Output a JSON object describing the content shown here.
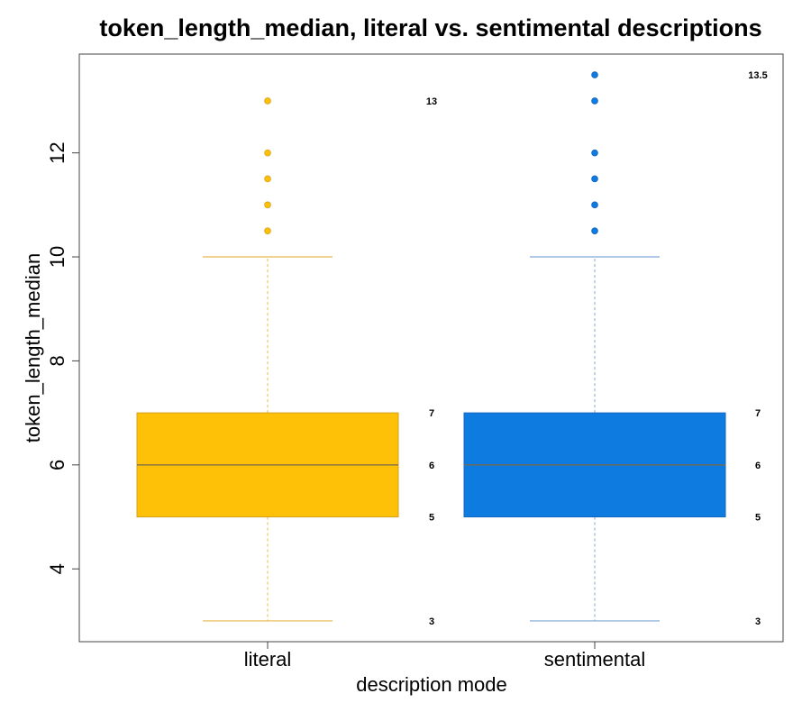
{
  "chart_data": {
    "type": "boxplot",
    "title": "token_length_median, literal vs. sentimental descriptions",
    "xlabel": "description mode",
    "ylabel": "token_length_median",
    "ylim": [
      2.6,
      13.9
    ],
    "yticks": [
      4,
      6,
      8,
      10,
      12
    ],
    "grid": false,
    "categories": [
      "literal",
      "sentimental"
    ],
    "series": [
      {
        "category": "literal",
        "color": "#FFC107",
        "edge_color": "#D4A017",
        "whisker_color": "#E8B84A",
        "whisker_low": 3,
        "q1": 5,
        "median": 6,
        "q3": 7,
        "whisker_high": 10,
        "outliers": [
          10.5,
          11,
          11.5,
          12,
          13
        ],
        "annotations": [
          {
            "value": 13,
            "text": "13"
          },
          {
            "value": 7,
            "text": "7"
          },
          {
            "value": 6,
            "text": "6"
          },
          {
            "value": 5,
            "text": "5"
          },
          {
            "value": 3,
            "text": "3"
          }
        ]
      },
      {
        "category": "sentimental",
        "color": "#0E7BE0",
        "edge_color": "#1565C0",
        "whisker_color": "#7FA6D6",
        "whisker_low": 3,
        "q1": 5,
        "median": 6,
        "q3": 7,
        "whisker_high": 10,
        "outliers": [
          10.5,
          11,
          11.5,
          12,
          13,
          13.5
        ],
        "annotations": [
          {
            "value": 13.5,
            "text": "13.5"
          },
          {
            "value": 7,
            "text": "7"
          },
          {
            "value": 6,
            "text": "6"
          },
          {
            "value": 5,
            "text": "5"
          },
          {
            "value": 3,
            "text": "3"
          }
        ]
      }
    ]
  }
}
